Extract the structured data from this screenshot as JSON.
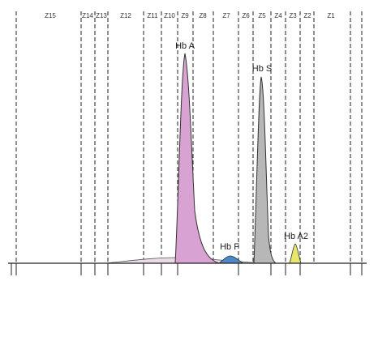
{
  "zones": [
    "Z15",
    "Z14",
    "Z13",
    "Z12",
    "Z11",
    "Z10",
    "Z9",
    "Z8",
    "Z7",
    "Z6",
    "Z5",
    "Z4",
    "Z3",
    "Z2",
    "Z1"
  ],
  "peaks": [
    {
      "label": "Hb A"
    },
    {
      "label": "Hb S"
    },
    {
      "label": "Hb F"
    },
    {
      "label": "Hb A2"
    }
  ]
}
